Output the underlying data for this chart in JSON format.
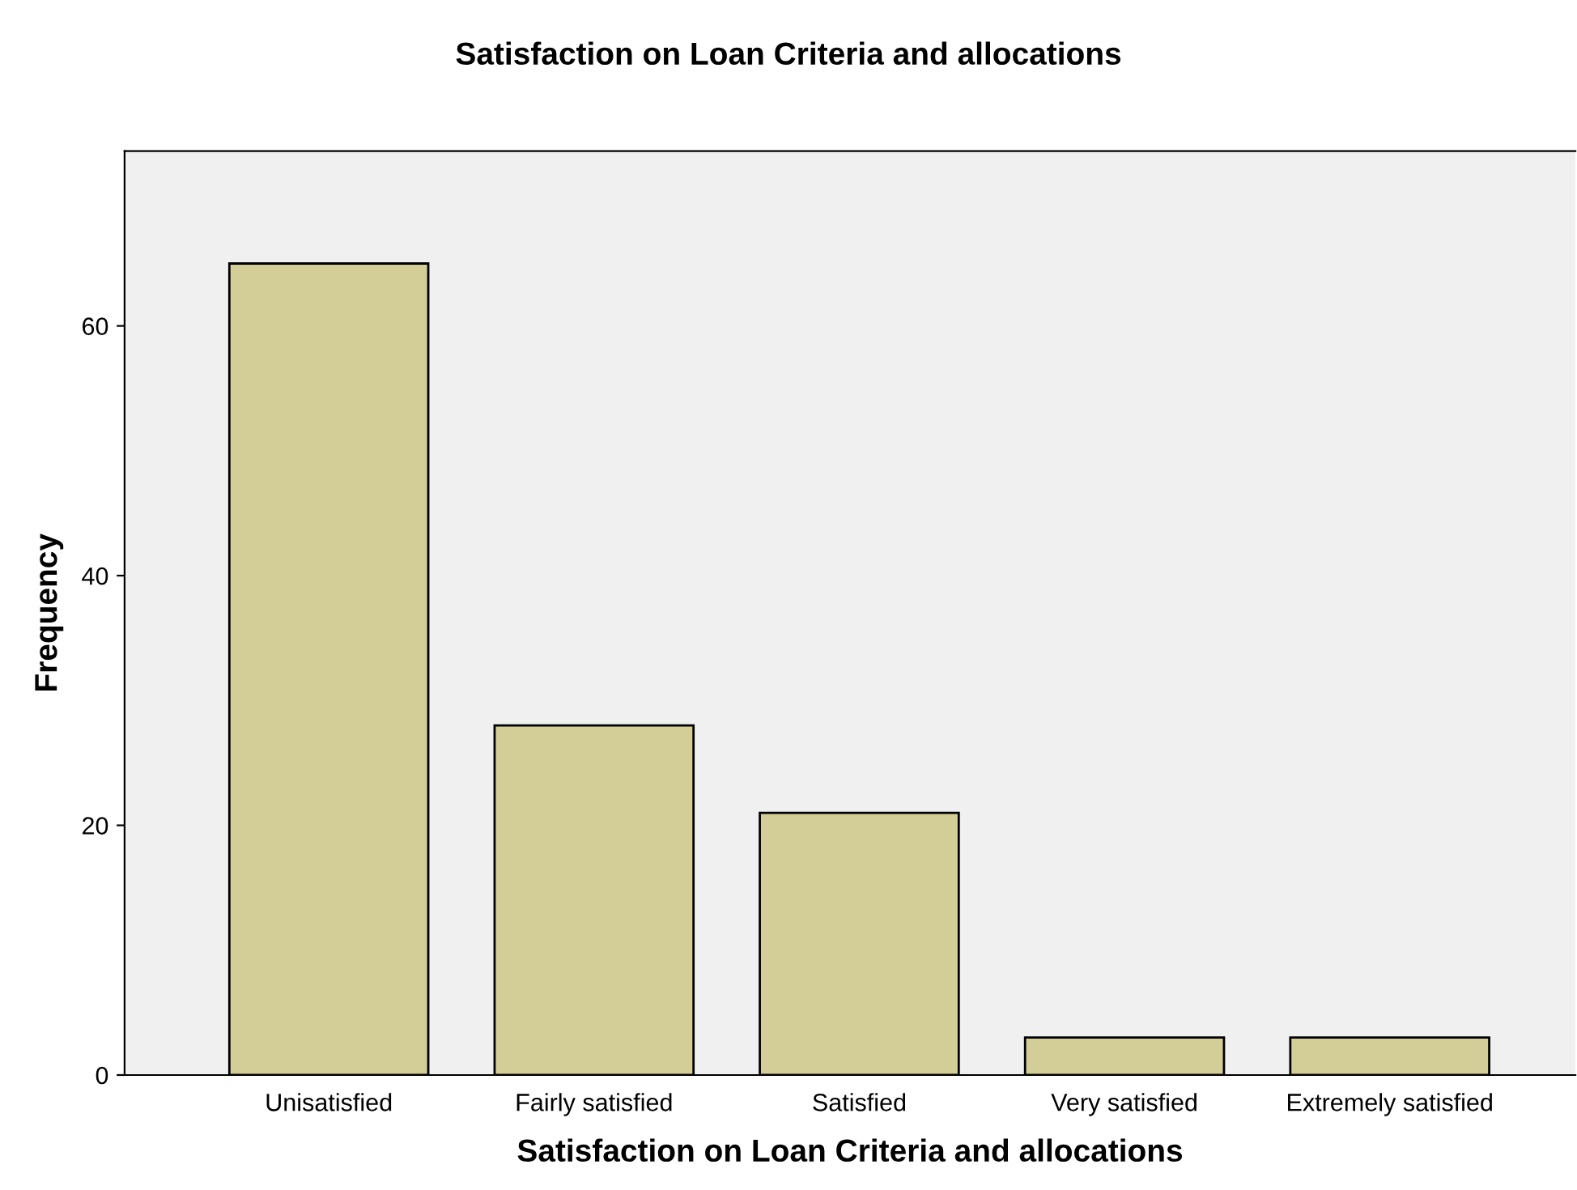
{
  "chart_data": {
    "type": "bar",
    "title": "Satisfaction on Loan Criteria and allocations",
    "xlabel": "Satisfaction on Loan Criteria and allocations",
    "ylabel": "Frequency",
    "categories": [
      "Unisatisfied",
      "Fairly satisfied",
      "Satisfied",
      "Very satisfied",
      "Extremely satisfied"
    ],
    "values": [
      65,
      28,
      21,
      3,
      3
    ],
    "color": "#d3ce97",
    "ylim": [
      0,
      74
    ],
    "yticks": [
      0,
      20,
      40,
      60
    ],
    "grid": false,
    "legend": false
  }
}
